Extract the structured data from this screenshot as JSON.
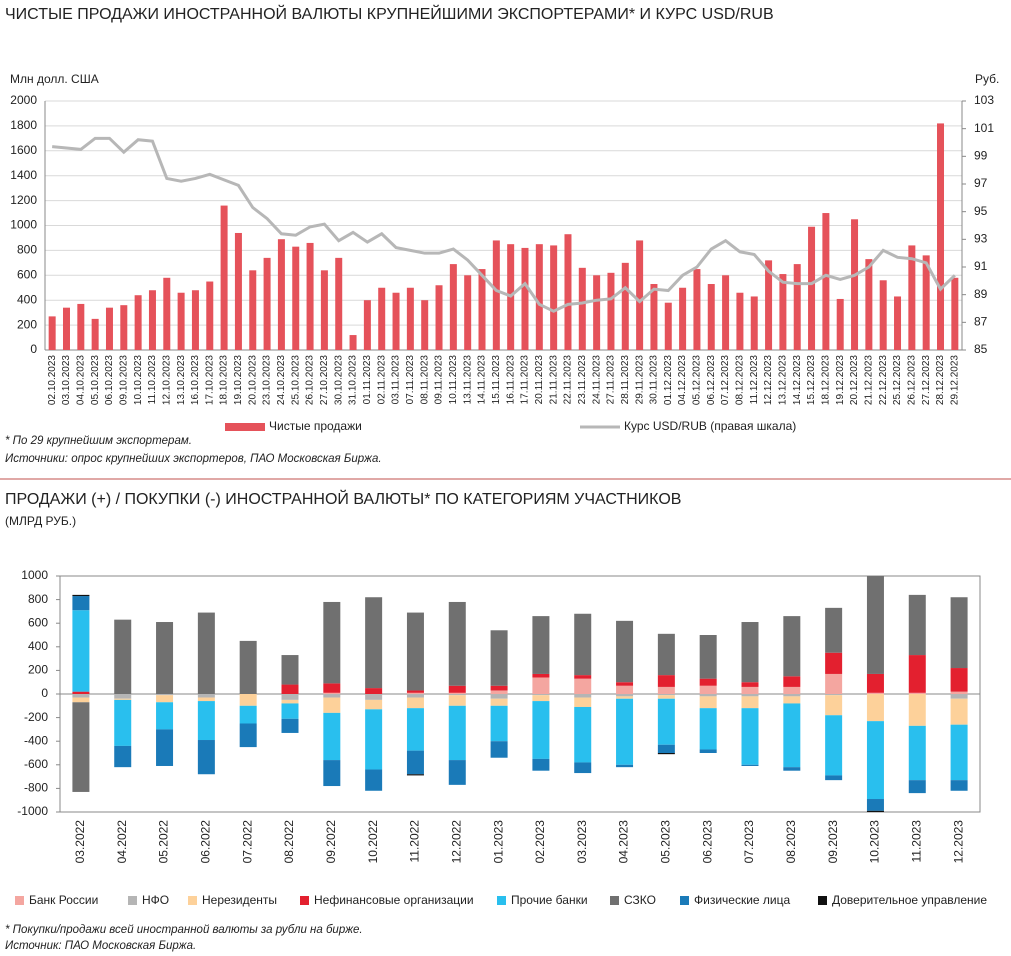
{
  "chart_data": [
    {
      "type": "bar",
      "title": "ЧИСТЫЕ ПРОДАЖИ ИНОСТРАННОЙ ВАЛЮТЫ КРУПНЕЙШИМИ ЭКСПОРТЕРАМИ* И КУРС USD/RUB",
      "y_label": "Млн долл. США",
      "y2_label": "Руб.",
      "categories": [
        "02.10.2023",
        "03.10.2023",
        "04.10.2023",
        "05.10.2023",
        "06.10.2023",
        "09.10.2023",
        "10.10.2023",
        "11.10.2023",
        "12.10.2023",
        "13.10.2023",
        "16.10.2023",
        "17.10.2023",
        "18.10.2023",
        "19.10.2023",
        "20.10.2023",
        "23.10.2023",
        "24.10.2023",
        "25.10.2023",
        "26.10.2023",
        "27.10.2023",
        "30.10.2023",
        "31.10.2023",
        "01.11.2023",
        "02.11.2023",
        "03.11.2023",
        "07.11.2023",
        "08.11.2023",
        "09.11.2023",
        "10.11.2023",
        "13.11.2023",
        "14.11.2023",
        "15.11.2023",
        "16.11.2023",
        "17.11.2023",
        "20.11.2023",
        "21.11.2023",
        "22.11.2023",
        "23.11.2023",
        "24.11.2023",
        "27.11.2023",
        "28.11.2023",
        "29.11.2023",
        "30.11.2023",
        "01.12.2023",
        "04.12.2023",
        "05.12.2023",
        "06.12.2023",
        "07.12.2023",
        "08.12.2023",
        "11.12.2023",
        "12.12.2023",
        "13.12.2023",
        "14.12.2023",
        "15.12.2023",
        "18.12.2023",
        "19.12.2023",
        "20.12.2023",
        "21.12.2023",
        "22.12.2023",
        "25.12.2023",
        "26.12.2023",
        "27.12.2023",
        "28.12.2023",
        "29.12.2023"
      ],
      "series": [
        {
          "name": "Чистые продажи",
          "type": "bar",
          "color": "#e5525a",
          "values": [
            270,
            340,
            370,
            250,
            340,
            360,
            440,
            480,
            580,
            460,
            480,
            550,
            1160,
            940,
            640,
            740,
            890,
            830,
            860,
            640,
            740,
            120,
            400,
            500,
            460,
            500,
            400,
            520,
            690,
            600,
            650,
            880,
            850,
            820,
            850,
            840,
            930,
            660,
            600,
            620,
            700,
            880,
            530,
            380,
            500,
            650,
            530,
            600,
            460,
            430,
            720,
            610,
            690,
            990,
            1100,
            410,
            1050,
            730,
            560,
            430,
            840,
            760,
            1820,
            580
          ]
        },
        {
          "name": "Курс USD/RUB (правая шкала)",
          "type": "line",
          "axis": "y2",
          "color": "#b7b7b7",
          "values": [
            99.7,
            99.6,
            99.5,
            100.3,
            100.3,
            99.3,
            100.2,
            100.1,
            97.4,
            97.2,
            97.4,
            97.7,
            97.3,
            96.9,
            95.3,
            94.5,
            93.4,
            93.3,
            93.9,
            94.1,
            92.9,
            93.5,
            92.8,
            93.4,
            92.4,
            92.2,
            92.0,
            92.0,
            92.3,
            91.5,
            90.4,
            89.3,
            88.9,
            89.8,
            88.3,
            87.8,
            88.3,
            88.4,
            88.6,
            88.7,
            89.5,
            88.5,
            89.4,
            89.3,
            90.4,
            91.0,
            92.3,
            92.9,
            92.1,
            91.9,
            90.7,
            89.9,
            89.8,
            89.8,
            90.4,
            90.1,
            90.4,
            91.0,
            92.2,
            91.7,
            91.6,
            91.3,
            89.4,
            90.4
          ]
        }
      ],
      "ylim": [
        0,
        2000
      ],
      "yticks": [
        0,
        200,
        400,
        600,
        800,
        1000,
        1200,
        1400,
        1600,
        1800,
        2000
      ],
      "y2lim": [
        85,
        103
      ],
      "y2ticks": [
        85,
        87,
        89,
        91,
        93,
        95,
        97,
        99,
        101,
        103
      ],
      "grid": true,
      "notes": [
        "* По 29 крупнейшим экспортерам.",
        "Источники: опрос крупнейших экспортеров, ПАО Московская Биржа."
      ]
    },
    {
      "type": "stacked_bar",
      "title": "ПРОДАЖИ (+) / ПОКУПКИ (-) ИНОСТРАННОЙ ВАЛЮТЫ* ПО КАТЕГОРИЯМ УЧАСТНИКОВ",
      "subtitle": "(МЛРД РУБ.)",
      "categories": [
        "03.2022",
        "04.2022",
        "05.2022",
        "06.2022",
        "07.2022",
        "08.2022",
        "09.2022",
        "10.2022",
        "11.2022",
        "12.2022",
        "01.2023",
        "02.2023",
        "03.2023",
        "04.2023",
        "05.2023",
        "06.2023",
        "07.2023",
        "08.2023",
        "09.2023",
        "10.2023",
        "11.2023",
        "12.2023"
      ],
      "series": [
        {
          "name": "Банк России",
          "color": "#f4a6a0",
          "values": [
            0,
            0,
            0,
            0,
            0,
            0,
            10,
            0,
            10,
            10,
            30,
            140,
            130,
            70,
            60,
            70,
            60,
            60,
            170,
            10,
            10,
            20
          ]
        },
        {
          "name": "НФО",
          "color": "#b5b5b5",
          "values": [
            -30,
            -40,
            -10,
            -30,
            0,
            -50,
            -30,
            -50,
            -30,
            -10,
            -40,
            -10,
            -30,
            -20,
            -10,
            -20,
            -20,
            -20,
            -10,
            0,
            0,
            -40
          ]
        },
        {
          "name": "Нерезиденты",
          "color": "#fdd19a",
          "values": [
            -40,
            -10,
            -60,
            -30,
            -100,
            -30,
            -130,
            -80,
            -90,
            -90,
            -60,
            -50,
            -80,
            -20,
            -30,
            -100,
            -100,
            -60,
            -170,
            -230,
            -270,
            -220
          ]
        },
        {
          "name": "Нефинансовые организации",
          "color": "#e3202f",
          "values": [
            20,
            0,
            0,
            0,
            0,
            80,
            80,
            50,
            20,
            60,
            40,
            30,
            30,
            30,
            100,
            60,
            40,
            90,
            180,
            160,
            320,
            200
          ]
        },
        {
          "name": "Прочие банки",
          "color": "#29bfee",
          "values": [
            690,
            -390,
            -230,
            -330,
            -150,
            -130,
            -400,
            -510,
            -360,
            -460,
            -300,
            -490,
            -470,
            -560,
            -390,
            -350,
            -480,
            -540,
            -510,
            -660,
            -460,
            -470
          ]
        },
        {
          "name": "СЗКО",
          "color": "#707070",
          "values": [
            -760,
            630,
            610,
            690,
            450,
            250,
            690,
            770,
            660,
            710,
            470,
            490,
            520,
            520,
            350,
            370,
            510,
            510,
            380,
            830,
            510,
            600
          ]
        },
        {
          "name": "Физические лица",
          "color": "#1a7ab8",
          "values": [
            120,
            -180,
            -310,
            -290,
            -200,
            -120,
            -220,
            -180,
            -200,
            -210,
            -140,
            -100,
            -90,
            -20,
            -70,
            -30,
            -10,
            -30,
            -40,
            -100,
            -110,
            -90
          ]
        },
        {
          "name": "Доверительное управление",
          "color": "#111111",
          "values": [
            10,
            0,
            0,
            0,
            0,
            0,
            0,
            0,
            -10,
            0,
            0,
            0,
            0,
            0,
            -10,
            0,
            0,
            0,
            0,
            -10,
            0,
            0
          ]
        }
      ],
      "ylim": [
        -1000,
        1000
      ],
      "yticks": [
        -1000,
        -800,
        -600,
        -400,
        -200,
        0,
        200,
        400,
        600,
        800,
        1000
      ],
      "grid": false,
      "notes": [
        "* Покупки/продажи всей иностранной валюты за рубли на бирже.",
        "Источник: ПАО Московская Биржа."
      ]
    }
  ]
}
